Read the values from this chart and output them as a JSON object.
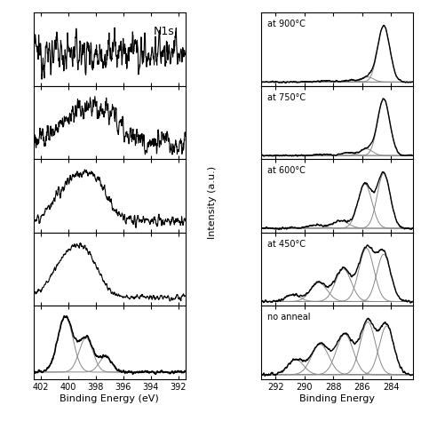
{
  "n1s_xlim": [
    402.5,
    391.5
  ],
  "n1s_xticks": [
    402,
    400,
    398,
    396,
    394,
    392
  ],
  "c1s_xlim": [
    293.0,
    282.5
  ],
  "c1s_xticks": [
    292,
    290,
    288,
    286,
    284
  ],
  "xlabel_left": "Binding Energy (eV)",
  "xlabel_right": "Binding Energy",
  "ylabel": "Intensity (a.u.)",
  "n1s_label": "N1s",
  "panel_labels": [
    "at 900°C",
    "at 750°C",
    "at 600°C",
    "at 450°C",
    "no anneal"
  ],
  "background_color": "#ffffff"
}
